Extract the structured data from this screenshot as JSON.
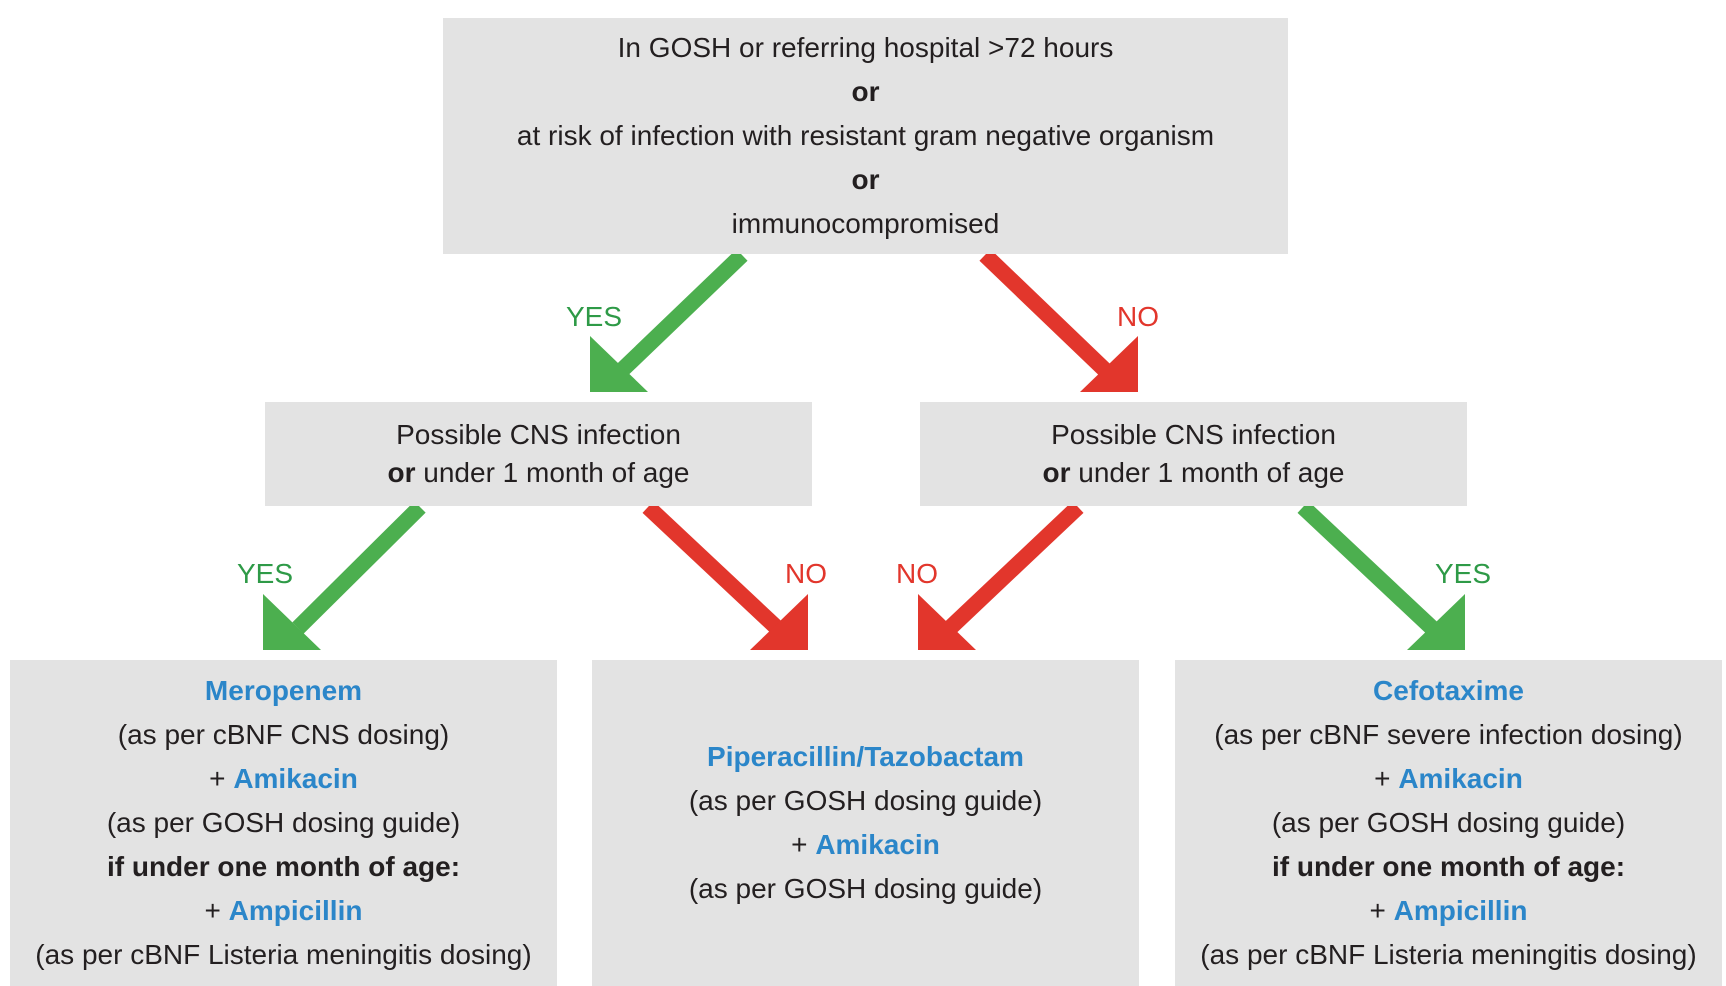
{
  "top_box": {
    "line1": "In GOSH or referring hospital >72 hours",
    "line2": "or",
    "line3": "at risk of infection with resistant gram negative organism",
    "line4": "or",
    "line5": "immunocompromised"
  },
  "left_question": {
    "line1": "Possible CNS infection",
    "or": "or",
    "line2_rest": " under 1 month of age"
  },
  "right_question": {
    "line1": "Possible CNS infection",
    "or": "or",
    "line2_rest": " under 1 month of age"
  },
  "labels": {
    "top_yes": "YES",
    "top_no": "NO",
    "left_yes": "YES",
    "left_no": "NO",
    "right_no": "NO",
    "right_yes": "YES"
  },
  "colors": {
    "box": "#e3e3e3",
    "yes_arrow": "#4caf4f",
    "no_arrow": "#e2362c",
    "drug": "#2b86c9"
  },
  "result_left": {
    "drug1": "Meropenem",
    "note1": "(as per cBNF CNS dosing)",
    "plus": "+ ",
    "drug2": "Amikacin",
    "note2": "(as per GOSH dosing guide)",
    "condition": "if under one month of age:",
    "drug3": "Ampicillin",
    "note3": "(as per cBNF Listeria meningitis dosing)"
  },
  "result_middle": {
    "drug1": "Piperacillin/Tazobactam",
    "note1": "(as per GOSH dosing guide)",
    "plus": "+ ",
    "drug2": "Amikacin",
    "note2": "(as per GOSH dosing guide)"
  },
  "result_right": {
    "drug1": "Cefotaxime",
    "note1": "(as per cBNF severe infection dosing)",
    "plus": "+ ",
    "drug2": "Amikacin",
    "note2": "(as per GOSH dosing guide)",
    "condition": "if under one month of age:",
    "drug3": "Ampicillin",
    "note3": "(as per cBNF Listeria meningitis dosing)"
  }
}
